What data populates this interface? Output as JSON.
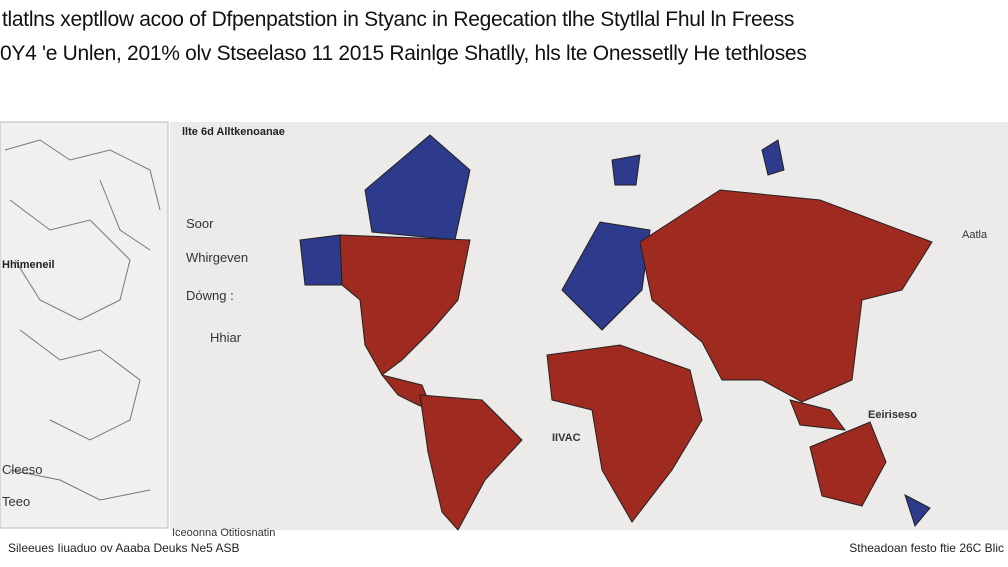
{
  "header": {
    "title_lines": [
      "tlatlns xeptllow acoo of Dfpenpatstion in Styanc in Regecation tlhe Stytllal Fhul ln Freess",
      "0Y4 'e Unlen, 201% olv Stseelaso 11 2015 Rainlge Shatlly, hls lte Onessetlly He tethloses"
    ]
  },
  "map": {
    "legend_title": "llte 6d Alltkenoanae",
    "legend_items": [
      "Soor",
      "Whirgeven",
      "Dówng :",
      "Hhiar"
    ],
    "labels": [
      "Aatla",
      "Eeiriseso",
      "IIVAC"
    ],
    "caption": "Iceoonna Otitiosnatin"
  },
  "inset": {
    "labels": [
      "Hhimeneil",
      "Cleeso",
      "Teeo"
    ]
  },
  "footer": {
    "left": "Sileeues Iiuaduo ov Aaaba Deuks Ne5 ASB",
    "right": "Stheadoan festo ftie 26C Blic"
  }
}
